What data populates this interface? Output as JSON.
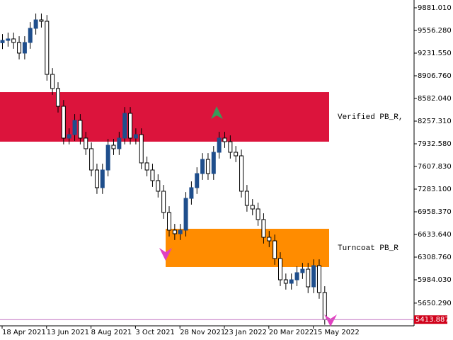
{
  "chart_data": {
    "type": "candlestick",
    "categories": [
      "18 Apr 2021",
      null,
      null,
      null,
      null,
      null,
      null,
      null,
      "13 Jun 2021",
      null,
      null,
      null,
      null,
      null,
      null,
      null,
      "8 Aug 2021",
      null,
      null,
      null,
      null,
      null,
      null,
      null,
      "3 Oct 2021",
      null,
      null,
      null,
      null,
      null,
      null,
      null,
      "28 Nov 2021",
      null,
      null,
      null,
      null,
      null,
      null,
      null,
      "23 Jan 2022",
      null,
      null,
      null,
      null,
      null,
      null,
      null,
      "20 Mar 2022",
      null,
      null,
      null,
      null,
      null,
      null,
      null,
      "15 May 2022",
      null,
      null
    ],
    "open": [
      9380,
      9414,
      9435,
      9384,
      9232,
      9384,
      9587,
      9708,
      9688,
      8927,
      8724,
      8470,
      8014,
      8064,
      8268,
      8014,
      7862,
      7557,
      7304,
      7557,
      7912,
      7862,
      8014,
      8369,
      8014,
      8064,
      7659,
      7557,
      7405,
      7253,
      6948,
      6695,
      6644,
      6695,
      7151,
      7304,
      7506,
      7709,
      7506,
      7811,
      8014,
      7963,
      7811,
      7760,
      7253,
      7050,
      6999,
      6847,
      6593,
      6542,
      6289,
      5984,
      5934,
      5984,
      6086,
      6136,
      5883,
      6187,
      5802
    ],
    "high": [
      9504,
      9525,
      9525,
      9474,
      9474,
      9677,
      9798,
      9798,
      9778,
      9017,
      8814,
      8560,
      8154,
      8358,
      8358,
      8104,
      7952,
      7647,
      7647,
      8002,
      8002,
      8104,
      8459,
      8459,
      8154,
      8154,
      7749,
      7647,
      7495,
      7343,
      7038,
      6785,
      6785,
      7241,
      7394,
      7596,
      7799,
      7799,
      7901,
      8104,
      8104,
      8053,
      7901,
      7850,
      7343,
      7140,
      7089,
      6937,
      6683,
      6632,
      6379,
      6074,
      6074,
      6176,
      6226,
      6226,
      6277,
      6277,
      5892
    ],
    "low": [
      9290,
      9324,
      9294,
      9142,
      9142,
      9294,
      9497,
      9598,
      8837,
      8634,
      8380,
      7924,
      7924,
      7974,
      7924,
      7772,
      7467,
      7214,
      7214,
      7467,
      7772,
      7772,
      7924,
      7924,
      7924,
      7569,
      7467,
      7315,
      7163,
      6858,
      6605,
      6554,
      6554,
      6605,
      7061,
      7214,
      7416,
      7416,
      7416,
      7721,
      7873,
      7721,
      7670,
      7163,
      6960,
      6909,
      6757,
      6503,
      6452,
      6199,
      5894,
      5844,
      5844,
      5894,
      5996,
      5793,
      5793,
      5712,
      5340
    ],
    "close": [
      9414,
      9435,
      9384,
      9232,
      9384,
      9587,
      9708,
      9688,
      8927,
      8724,
      8470,
      8014,
      8064,
      8268,
      8014,
      7862,
      7557,
      7304,
      7557,
      7912,
      7862,
      8014,
      8369,
      8014,
      8064,
      7659,
      7557,
      7405,
      7253,
      6948,
      6695,
      6644,
      6695,
      7151,
      7304,
      7506,
      7709,
      7506,
      7811,
      8014,
      7963,
      7811,
      7760,
      7253,
      7050,
      6999,
      6847,
      6593,
      6542,
      6289,
      5984,
      5934,
      5984,
      6086,
      6136,
      5883,
      6187,
      5802,
      5414
    ],
    "up_color": "#1f4e8c",
    "down_color": "#ffffff",
    "ylim": [
      5324.5,
      9992.6
    ],
    "yticks": [
      {
        "value": 9881.01,
        "label": "9881.010"
      },
      {
        "value": 9556.28,
        "label": "9556.280"
      },
      {
        "value": 9231.55,
        "label": "9231.550"
      },
      {
        "value": 8906.76,
        "label": "8906.760"
      },
      {
        "value": 8582.04,
        "label": "8582.040"
      },
      {
        "value": 8257.31,
        "label": "8257.310"
      },
      {
        "value": 7932.58,
        "label": "7932.580"
      },
      {
        "value": 7607.83,
        "label": "7607.830"
      },
      {
        "value": 7283.1,
        "label": "7283.100"
      },
      {
        "value": 6958.37,
        "label": "6958.370"
      },
      {
        "value": 6633.64,
        "label": "6633.640"
      },
      {
        "value": 6308.76,
        "label": "6308.760"
      },
      {
        "value": 5984.03,
        "label": "5984.030"
      },
      {
        "value": 5650.29,
        "label": "5650.290"
      }
    ],
    "zones": [
      {
        "label": "Verified PB_R,",
        "top": 8673,
        "bottom": 7963,
        "color": "#dc143c"
      },
      {
        "label": "Turncoat PB_R",
        "top": 6715,
        "bottom": 6167,
        "color": "#ff8c00"
      }
    ],
    "current_price": 5413.887
  }
}
